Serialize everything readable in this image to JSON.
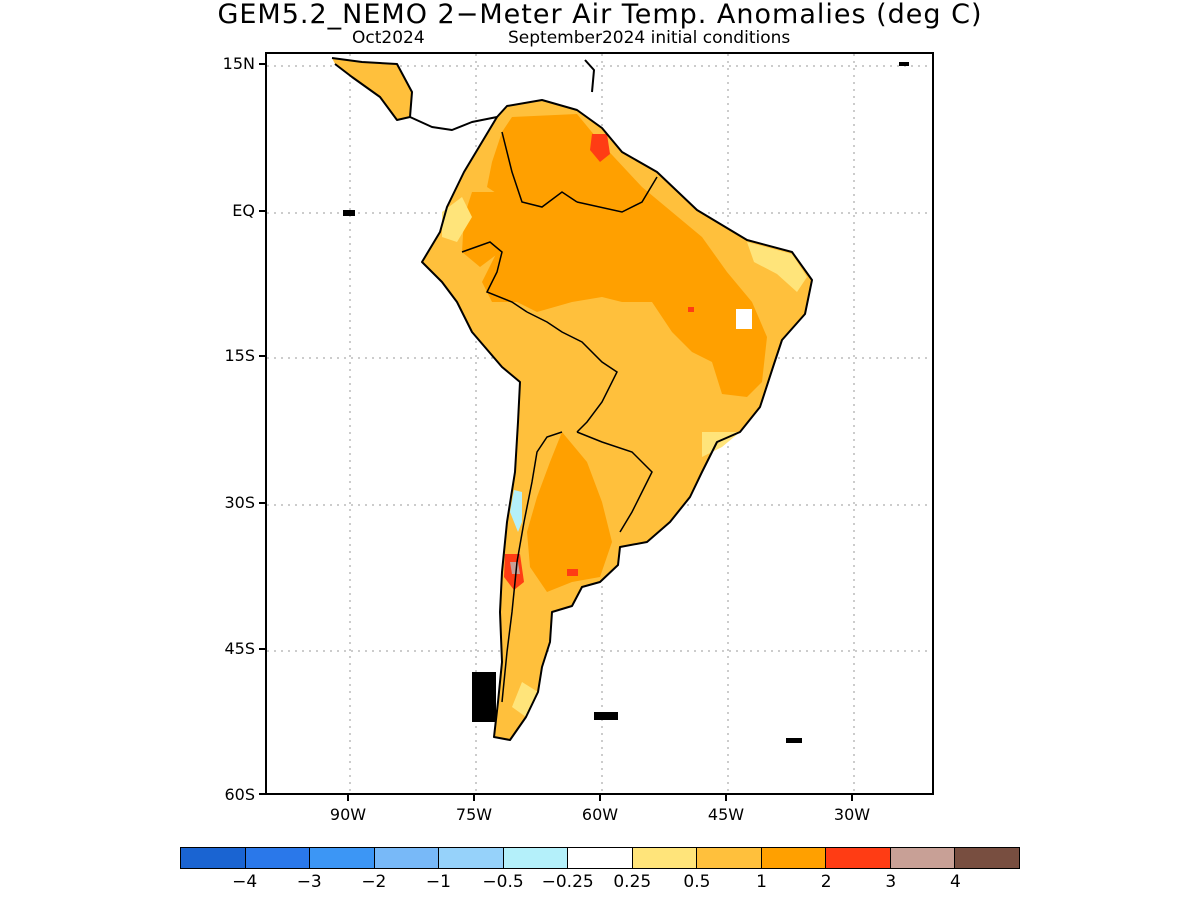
{
  "title": "GEM5.2_NEMO 2−Meter Air Temp. Anomalies (deg C)",
  "subtitle_left": "Oct2024",
  "subtitle_right": "September2024 initial conditions",
  "y_axis_labels": [
    "15N",
    "EQ",
    "15S",
    "30S",
    "45S",
    "60S"
  ],
  "x_axis_labels": [
    "90W",
    "75W",
    "60W",
    "45W",
    "30W"
  ],
  "colorbar": {
    "colors": [
      "#1a64d2",
      "#2a78ea",
      "#3c96f5",
      "#78b9f8",
      "#96d2fa",
      "#b4f0fa",
      "#ffffff",
      "#ffe47a",
      "#ffc03c",
      "#ffa000",
      "#ff3c14",
      "#c8a096",
      "#784e40"
    ],
    "labels": [
      "−4",
      "−3",
      "−2",
      "−1",
      "−0.5",
      "−0.25",
      "0.25",
      "0.5",
      "1",
      "2",
      "3",
      "4"
    ]
  },
  "map": {
    "region": "South America",
    "lat_range": [
      -60,
      15
    ],
    "lon_range": [
      -100,
      -20
    ],
    "dominant_anomaly": "0.5 to 2 deg C warm across most of the continent",
    "hotspots": [
      "French Guiana/Suriname coast (2-3)",
      "central Argentina/Chile border (2-3)"
    ],
    "cool_spots": [
      "Chilean Andes near 30S-35S (-0.5 to -0.25)"
    ],
    "missing_data": [
      "small white square in eastern Brazil"
    ]
  }
}
